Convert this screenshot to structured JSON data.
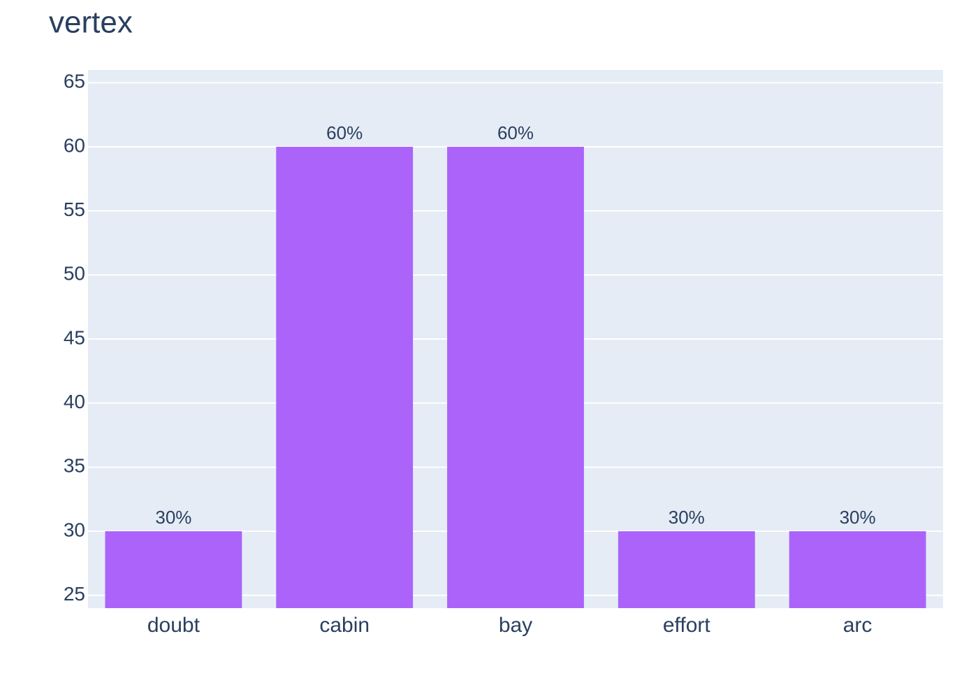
{
  "chart_data": {
    "type": "bar",
    "title": "vertex",
    "categories": [
      "doubt",
      "cabin",
      "bay",
      "effort",
      "arc"
    ],
    "values": [
      30,
      60,
      60,
      30,
      30
    ],
    "value_labels": [
      "30%",
      "60%",
      "60%",
      "30%",
      "30%"
    ],
    "color": "#ab63fa",
    "ylim": [
      24,
      66
    ],
    "yticks": [
      25,
      30,
      35,
      40,
      45,
      50,
      55,
      60,
      65
    ],
    "grid": true
  }
}
